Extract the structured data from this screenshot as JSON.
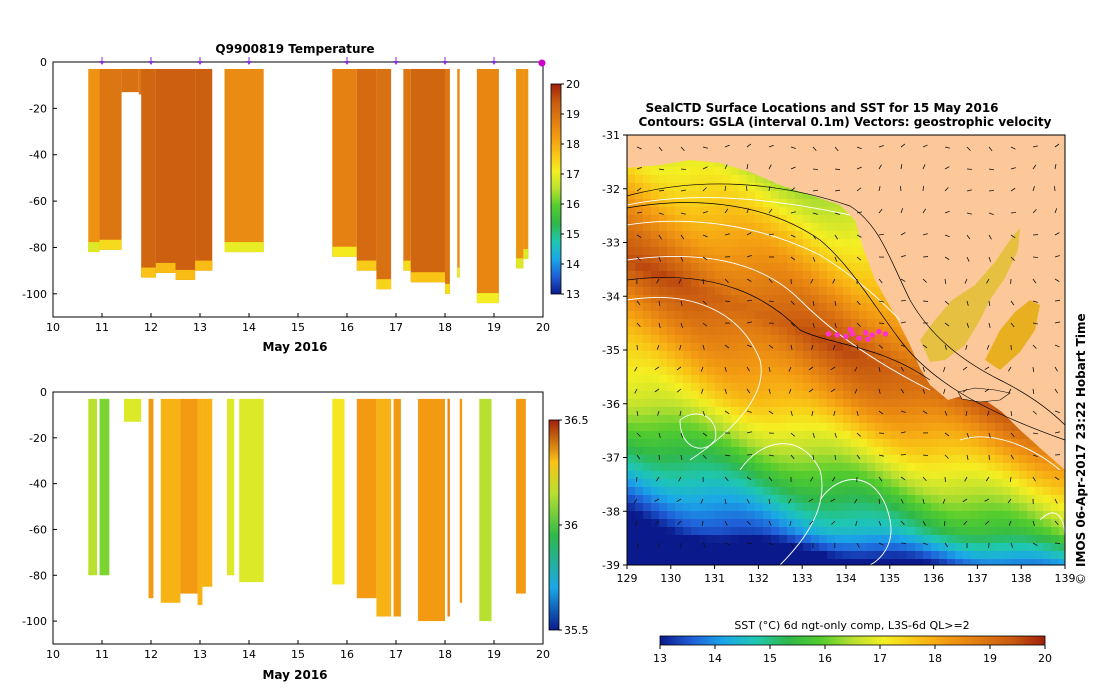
{
  "colors": {
    "sst_scale": [
      "#0a1a8c",
      "#1f5fd8",
      "#1ba7e8",
      "#1fc7b0",
      "#2fb84a",
      "#52cc2e",
      "#b8e030",
      "#f4ef22",
      "#f9c316",
      "#f39a12",
      "#df7a12",
      "#c85a10",
      "#a0200c"
    ],
    "land": "#fcc89a",
    "vector": "#111111",
    "contour": "#ffffff",
    "marker": "#ff33cc"
  },
  "chart_data": [
    {
      "type": "heatmap",
      "title": "Q9900819  Temperature",
      "xlabel": "May 2016",
      "ylabel": "",
      "xlim": [
        10,
        20
      ],
      "ylim": [
        -110,
        0
      ],
      "xticks": [
        "10",
        "11",
        "12",
        "13",
        "14",
        "15",
        "16",
        "17",
        "18",
        "19",
        "20"
      ],
      "yticks": [
        "0",
        "-20",
        "-40",
        "-60",
        "-80",
        "-100"
      ],
      "colorbar": {
        "range": [
          13,
          20
        ],
        "ticks": [
          "13",
          "14",
          "15",
          "16",
          "17",
          "18",
          "19",
          "20"
        ]
      },
      "profile_markers_x": [
        11,
        12,
        13,
        14,
        16,
        17,
        18,
        19,
        20
      ],
      "profiles": [
        {
          "x0": 10.72,
          "x1": 10.95,
          "depth": 82,
          "value": 18.4
        },
        {
          "x0": 10.95,
          "x1": 11.4,
          "depth": 81,
          "value": 18.9
        },
        {
          "x0": 11.4,
          "x1": 11.75,
          "depth": 13,
          "value": 19.0
        },
        {
          "x0": 11.75,
          "x1": 11.82,
          "depth": 14,
          "value": 18.9
        },
        {
          "x0": 11.8,
          "x1": 12.1,
          "depth": 93,
          "value": 19.2
        },
        {
          "x0": 12.1,
          "x1": 12.5,
          "depth": 91,
          "value": 19.3
        },
        {
          "x0": 12.5,
          "x1": 12.9,
          "depth": 94,
          "value": 19.3
        },
        {
          "x0": 12.9,
          "x1": 13.25,
          "depth": 90,
          "value": 19.3
        },
        {
          "x0": 13.5,
          "x1": 14.3,
          "depth": 82,
          "value": 18.5
        },
        {
          "x0": 15.7,
          "x1": 16.2,
          "depth": 84,
          "value": 18.7
        },
        {
          "x0": 16.2,
          "x1": 16.6,
          "depth": 90,
          "value": 19.1
        },
        {
          "x0": 16.6,
          "x1": 16.9,
          "depth": 98,
          "value": 19.0
        },
        {
          "x0": 17.15,
          "x1": 17.3,
          "depth": 90,
          "value": 18.9
        },
        {
          "x0": 17.3,
          "x1": 18.0,
          "depth": 95,
          "value": 19.2
        },
        {
          "x0": 18.0,
          "x1": 18.1,
          "depth": 100,
          "value": 18.9
        },
        {
          "x0": 18.25,
          "x1": 18.3,
          "depth": 93,
          "value": 18.5
        },
        {
          "x0": 18.65,
          "x1": 19.1,
          "depth": 104,
          "value": 18.6
        },
        {
          "x0": 19.45,
          "x1": 19.6,
          "depth": 89,
          "value": 18.4
        },
        {
          "x0": 19.6,
          "x1": 19.7,
          "depth": 85,
          "value": 18.4
        }
      ]
    },
    {
      "type": "heatmap",
      "title": "",
      "xlabel": "May 2016",
      "ylabel": "",
      "xlim": [
        10,
        20
      ],
      "ylim": [
        -110,
        0
      ],
      "xticks": [
        "10",
        "11",
        "12",
        "13",
        "14",
        "15",
        "16",
        "17",
        "18",
        "19",
        "20"
      ],
      "yticks": [
        "0",
        "-20",
        "-40",
        "-60",
        "-80",
        "-100"
      ],
      "colorbar": {
        "range": [
          35.5,
          36.5
        ],
        "ticks": [
          "35.5",
          "36",
          "36.5"
        ]
      },
      "profiles": [
        {
          "x0": 10.72,
          "x1": 10.9,
          "depth": 80,
          "value": 36.0
        },
        {
          "x0": 10.95,
          "x1": 11.15,
          "depth": 80,
          "value": 35.95
        },
        {
          "x0": 11.45,
          "x1": 11.8,
          "depth": 13,
          "value": 36.05
        },
        {
          "x0": 11.95,
          "x1": 12.05,
          "depth": 90,
          "value": 36.25
        },
        {
          "x0": 12.2,
          "x1": 12.6,
          "depth": 92,
          "value": 36.2
        },
        {
          "x0": 12.6,
          "x1": 12.95,
          "depth": 88,
          "value": 36.25
        },
        {
          "x0": 12.95,
          "x1": 13.05,
          "depth": 93,
          "value": 36.2
        },
        {
          "x0": 13.05,
          "x1": 13.25,
          "depth": 85,
          "value": 36.2
        },
        {
          "x0": 13.55,
          "x1": 13.7,
          "depth": 80,
          "value": 36.05
        },
        {
          "x0": 13.8,
          "x1": 14.3,
          "depth": 83,
          "value": 36.05
        },
        {
          "x0": 15.7,
          "x1": 15.95,
          "depth": 84,
          "value": 36.1
        },
        {
          "x0": 16.2,
          "x1": 16.6,
          "depth": 90,
          "value": 36.25
        },
        {
          "x0": 16.6,
          "x1": 16.9,
          "depth": 98,
          "value": 36.2
        },
        {
          "x0": 16.95,
          "x1": 17.1,
          "depth": 98,
          "value": 36.25
        },
        {
          "x0": 17.45,
          "x1": 18.0,
          "depth": 100,
          "value": 36.25
        },
        {
          "x0": 18.05,
          "x1": 18.1,
          "depth": 98,
          "value": 36.3
        },
        {
          "x0": 18.3,
          "x1": 18.35,
          "depth": 92,
          "value": 36.25
        },
        {
          "x0": 18.7,
          "x1": 18.95,
          "depth": 100,
          "value": 36.0
        },
        {
          "x0": 19.45,
          "x1": 19.65,
          "depth": 88,
          "value": 36.25
        }
      ]
    },
    {
      "type": "heatmap",
      "title": "SealCTD Surface Locations and SST for 15 May 2016",
      "subtitle": "Contours: GSLA (interval 0.1m) Vectors: geostrophic velocity",
      "xlabel": "",
      "ylabel": "",
      "xlim": [
        129,
        139
      ],
      "ylim": [
        -39,
        -31
      ],
      "xticks": [
        "129",
        "130",
        "131",
        "132",
        "133",
        "134",
        "135",
        "136",
        "137",
        "138",
        "139"
      ],
      "yticks": [
        "-31",
        "-32",
        "-33",
        "-34",
        "-35",
        "-36",
        "-37",
        "-38",
        "-39"
      ],
      "colorbar": {
        "label": "SST (°C) 6d ngt-only comp, L3S-6d QL>=2",
        "range": [
          13,
          20
        ],
        "ticks": [
          "13",
          "14",
          "15",
          "16",
          "17",
          "18",
          "19",
          "20"
        ]
      },
      "seal_locations": [
        {
          "lon": 133.6,
          "lat": -34.7
        },
        {
          "lon": 133.8,
          "lat": -34.72
        },
        {
          "lon": 134.0,
          "lat": -34.75
        },
        {
          "lon": 134.15,
          "lat": -34.7
        },
        {
          "lon": 134.3,
          "lat": -34.78
        },
        {
          "lon": 134.45,
          "lat": -34.68
        },
        {
          "lon": 134.6,
          "lat": -34.72
        },
        {
          "lon": 134.75,
          "lat": -34.66
        },
        {
          "lon": 134.9,
          "lat": -34.7
        },
        {
          "lon": 134.1,
          "lat": -34.62
        },
        {
          "lon": 134.5,
          "lat": -34.8
        }
      ]
    }
  ],
  "credit": "IMOS 06-Apr-2017 23:22 Hobart Time",
  "credit_symbol": "©"
}
